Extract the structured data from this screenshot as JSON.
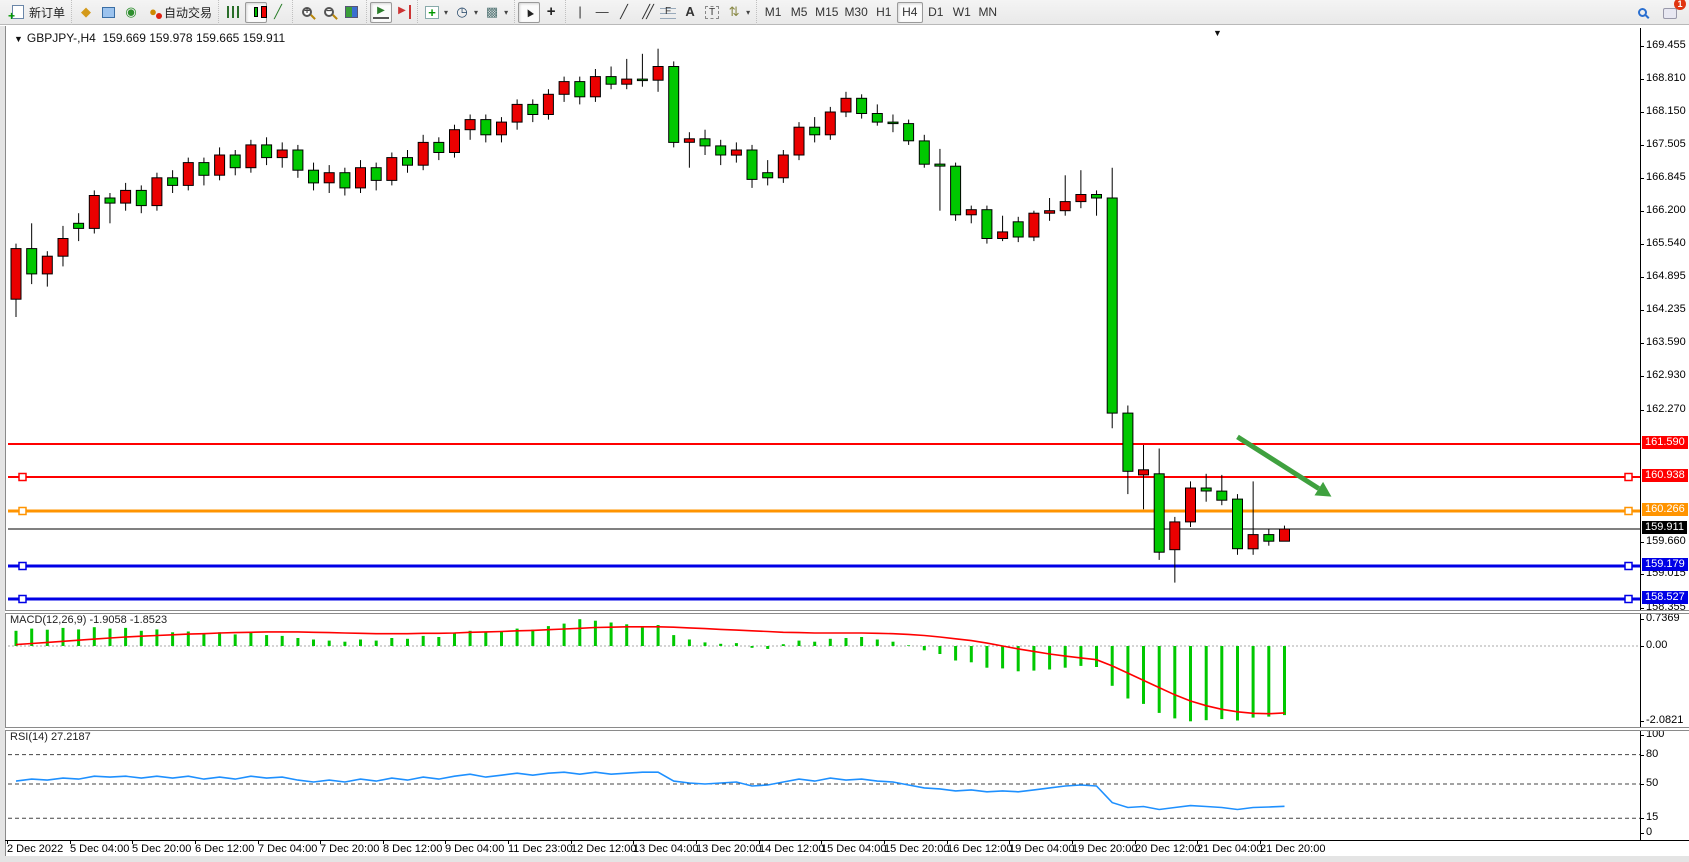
{
  "toolbar": {
    "groups": [
      {
        "items": [
          {
            "name": "new-order-button",
            "icon": "doc-plus",
            "label": "新订单"
          }
        ]
      },
      {
        "items": [
          {
            "name": "object-pointer-button",
            "icon": "gold-pointer"
          },
          {
            "name": "market-data-button",
            "icon": "monitor"
          },
          {
            "name": "news-feed-button",
            "icon": "signal"
          },
          {
            "name": "auto-trading-button",
            "icon": "globe-red",
            "label": "自动交易"
          }
        ]
      },
      {
        "items": [
          {
            "name": "bar-chart-button",
            "icon": "bars"
          },
          {
            "name": "candlestick-chart-button",
            "icon": "candles",
            "active": true
          },
          {
            "name": "line-chart-button",
            "icon": "linechart"
          }
        ]
      },
      {
        "items": [
          {
            "name": "zoom-in-button",
            "icon": "zoom-in"
          },
          {
            "name": "zoom-out-button",
            "icon": "zoom-out"
          },
          {
            "name": "tile-windows-button",
            "icon": "tiles"
          }
        ]
      },
      {
        "items": [
          {
            "name": "auto-scroll-button",
            "icon": "autoscroll",
            "active": true
          },
          {
            "name": "chart-shift-button",
            "icon": "shift"
          }
        ]
      },
      {
        "items": [
          {
            "name": "indicators-button",
            "icon": "add-indicator",
            "dropdown": true
          },
          {
            "name": "periods-button",
            "icon": "clock",
            "dropdown": true
          },
          {
            "name": "templates-button",
            "icon": "template",
            "dropdown": true
          }
        ]
      },
      {
        "items": [
          {
            "name": "cursor-button",
            "icon": "cursor",
            "active": true
          },
          {
            "name": "crosshair-button",
            "icon": "crosshair"
          }
        ]
      },
      {
        "items": [
          {
            "name": "vertical-line-button",
            "icon": "vline"
          },
          {
            "name": "horizontal-line-button",
            "icon": "hline"
          },
          {
            "name": "trendline-button",
            "icon": "trendline"
          },
          {
            "name": "equidistant-channel-button",
            "icon": "channel"
          },
          {
            "name": "fibonacci-button",
            "icon": "fibo"
          },
          {
            "name": "text-button",
            "icon": "textA"
          },
          {
            "name": "text-label-button",
            "icon": "labelT"
          },
          {
            "name": "arrows-button",
            "icon": "arrows",
            "dropdown": true
          }
        ]
      },
      {
        "items": [
          {
            "name": "timeframe-m1",
            "label": "M1"
          },
          {
            "name": "timeframe-m5",
            "label": "M5"
          },
          {
            "name": "timeframe-m15",
            "label": "M15"
          },
          {
            "name": "timeframe-m30",
            "label": "M30"
          },
          {
            "name": "timeframe-h1",
            "label": "H1"
          },
          {
            "name": "timeframe-h4",
            "label": "H4",
            "active": true
          },
          {
            "name": "timeframe-d1",
            "label": "D1"
          },
          {
            "name": "timeframe-w1",
            "label": "W1"
          },
          {
            "name": "timeframe-mn",
            "label": "MN"
          }
        ]
      }
    ],
    "right": {
      "search": {
        "name": "search-button"
      },
      "chat": {
        "name": "chat-button",
        "badge": "1"
      }
    }
  },
  "header": {
    "symbol_period": "GBPJPY-,H4",
    "ohlc_text": "159.669 159.978 159.665 159.911",
    "collapse_arrow": "▼",
    "shift_marker": "▼"
  },
  "macd_panel": {
    "label": "MACD(12,26,9) -1.9058 -1.8523"
  },
  "rsi_panel": {
    "label": "RSI(14) 27.2187"
  },
  "chart_data": {
    "type": "candlestick",
    "symbol": "GBPJPY-",
    "timeframe": "H4",
    "title": "GBPJPY-,H4  159.669 159.978 159.665 159.911",
    "current_bar": {
      "open": 159.669,
      "high": 159.978,
      "low": 159.665,
      "close": 159.911
    },
    "colors": {
      "bull": "#EA0000",
      "bear": "#00C800",
      "wick": "#000000",
      "note": "inverted CN scheme: red = up, green = down"
    },
    "y_axis": {
      "visible_range": [
        158.355,
        169.455
      ],
      "ticks": [
        "169.455",
        "168.810",
        "168.150",
        "167.505",
        "166.845",
        "166.200",
        "165.540",
        "164.895",
        "164.235",
        "163.590",
        "162.930",
        "162.270",
        "159.660",
        "159.015",
        "158.355"
      ]
    },
    "x_axis": {
      "labels": [
        "2 Dec 2022",
        "5 Dec 04:00",
        "5 Dec 20:00",
        "6 Dec 12:00",
        "7 Dec 04:00",
        "7 Dec 20:00",
        "8 Dec 12:00",
        "9 Dec 04:00",
        "11 Dec 23:00",
        "12 Dec 12:00",
        "13 Dec 04:00",
        "13 Dec 20:00",
        "14 Dec 12:00",
        "15 Dec 04:00",
        "15 Dec 20:00",
        "16 Dec 12:00",
        "19 Dec 04:00",
        "19 Dec 20:00",
        "20 Dec 12:00",
        "21 Dec 04:00",
        "21 Dec 20:00"
      ],
      "candles_per_label": 4
    },
    "horizontal_levels": [
      {
        "price": 161.59,
        "color": "#FF0000",
        "width": 2,
        "selected": false
      },
      {
        "price": 160.938,
        "color": "#FF0000",
        "width": 2,
        "selected": true
      },
      {
        "price": 160.266,
        "color": "#FF9400",
        "width": 3,
        "selected": true
      },
      {
        "price": 159.179,
        "color": "#0000E6",
        "width": 3,
        "selected": true
      },
      {
        "price": 158.527,
        "color": "#0000E6",
        "width": 3,
        "selected": true
      }
    ],
    "bid_line": {
      "price": 159.911,
      "color": "#000000",
      "label_bg": "#000000"
    },
    "arrow_annotation": {
      "color": "#3FA13F",
      "from": {
        "bar": 78,
        "price": 161.73
      },
      "to": {
        "bar": 84,
        "price": 160.55
      }
    },
    "candles": [
      [
        164.45,
        165.55,
        164.1,
        165.45
      ],
      [
        165.45,
        165.95,
        164.75,
        164.95
      ],
      [
        164.95,
        165.4,
        164.7,
        165.3
      ],
      [
        165.3,
        165.9,
        165.1,
        165.65
      ],
      [
        165.95,
        166.15,
        165.6,
        165.85
      ],
      [
        165.85,
        166.6,
        165.75,
        166.5
      ],
      [
        166.45,
        166.55,
        165.95,
        166.35
      ],
      [
        166.35,
        166.75,
        166.2,
        166.6
      ],
      [
        166.6,
        166.7,
        166.15,
        166.3
      ],
      [
        166.3,
        166.95,
        166.2,
        166.85
      ],
      [
        166.85,
        167.0,
        166.55,
        166.7
      ],
      [
        166.7,
        167.25,
        166.6,
        167.15
      ],
      [
        167.15,
        167.25,
        166.7,
        166.9
      ],
      [
        166.9,
        167.45,
        166.8,
        167.3
      ],
      [
        167.3,
        167.4,
        166.9,
        167.05
      ],
      [
        167.05,
        167.6,
        166.95,
        167.5
      ],
      [
        167.5,
        167.65,
        167.1,
        167.25
      ],
      [
        167.25,
        167.55,
        167.05,
        167.4
      ],
      [
        167.4,
        167.5,
        166.85,
        167.0
      ],
      [
        167.0,
        167.15,
        166.6,
        166.75
      ],
      [
        166.75,
        167.1,
        166.55,
        166.95
      ],
      [
        166.95,
        167.05,
        166.5,
        166.65
      ],
      [
        166.65,
        167.2,
        166.55,
        167.05
      ],
      [
        167.05,
        167.15,
        166.6,
        166.8
      ],
      [
        166.8,
        167.35,
        166.7,
        167.25
      ],
      [
        167.25,
        167.4,
        166.95,
        167.1
      ],
      [
        167.1,
        167.7,
        167.0,
        167.55
      ],
      [
        167.55,
        167.65,
        167.2,
        167.35
      ],
      [
        167.35,
        167.9,
        167.25,
        167.8
      ],
      [
        167.8,
        168.1,
        167.6,
        168.0
      ],
      [
        168.0,
        168.1,
        167.55,
        167.7
      ],
      [
        167.7,
        168.05,
        167.55,
        167.95
      ],
      [
        167.95,
        168.4,
        167.8,
        168.3
      ],
      [
        168.3,
        168.4,
        167.95,
        168.1
      ],
      [
        168.1,
        168.6,
        168.0,
        168.5
      ],
      [
        168.5,
        168.85,
        168.35,
        168.75
      ],
      [
        168.75,
        168.85,
        168.3,
        168.45
      ],
      [
        168.45,
        169.0,
        168.35,
        168.85
      ],
      [
        168.85,
        169.05,
        168.6,
        168.7
      ],
      [
        168.7,
        169.2,
        168.6,
        168.8
      ],
      [
        168.8,
        169.3,
        168.65,
        168.78
      ],
      [
        168.78,
        169.4,
        168.55,
        169.05
      ],
      [
        169.05,
        169.15,
        167.45,
        167.55
      ],
      [
        167.55,
        167.75,
        167.05,
        167.62
      ],
      [
        167.62,
        167.8,
        167.3,
        167.48
      ],
      [
        167.48,
        167.6,
        167.1,
        167.3
      ],
      [
        167.3,
        167.55,
        167.15,
        167.4
      ],
      [
        167.4,
        167.5,
        166.65,
        166.82
      ],
      [
        166.95,
        167.2,
        166.7,
        166.85
      ],
      [
        166.85,
        167.4,
        166.75,
        167.3
      ],
      [
        167.3,
        167.95,
        167.2,
        167.85
      ],
      [
        167.85,
        168.05,
        167.55,
        167.7
      ],
      [
        167.7,
        168.25,
        167.6,
        168.15
      ],
      [
        168.15,
        168.55,
        168.05,
        168.42
      ],
      [
        168.42,
        168.5,
        168.02,
        168.12
      ],
      [
        168.12,
        168.3,
        167.88,
        167.95
      ],
      [
        167.95,
        168.1,
        167.75,
        167.92
      ],
      [
        167.92,
        168.0,
        167.5,
        167.58
      ],
      [
        167.58,
        167.7,
        167.05,
        167.12
      ],
      [
        167.12,
        167.42,
        166.2,
        167.08
      ],
      [
        167.08,
        167.15,
        166.0,
        166.12
      ],
      [
        166.12,
        166.3,
        165.95,
        166.22
      ],
      [
        166.22,
        166.3,
        165.55,
        165.65
      ],
      [
        165.65,
        166.1,
        165.6,
        165.78
      ],
      [
        165.98,
        166.08,
        165.58,
        165.68
      ],
      [
        165.68,
        166.2,
        165.6,
        166.15
      ],
      [
        166.15,
        166.45,
        166.0,
        166.2
      ],
      [
        166.2,
        166.9,
        166.1,
        166.38
      ],
      [
        166.38,
        167.0,
        166.25,
        166.52
      ],
      [
        166.52,
        166.6,
        166.1,
        166.45
      ],
      [
        166.45,
        167.05,
        161.9,
        162.2
      ],
      [
        162.2,
        162.35,
        160.6,
        161.05
      ],
      [
        160.98,
        161.57,
        160.3,
        161.08
      ],
      [
        161.0,
        161.5,
        159.3,
        159.45
      ],
      [
        159.5,
        160.15,
        158.85,
        160.05
      ],
      [
        160.05,
        160.85,
        159.95,
        160.72
      ],
      [
        160.72,
        161.0,
        160.45,
        160.66
      ],
      [
        160.66,
        160.98,
        160.38,
        160.48
      ],
      [
        160.5,
        160.6,
        159.4,
        159.52
      ],
      [
        159.52,
        160.85,
        159.4,
        159.8
      ],
      [
        159.8,
        159.9,
        159.58,
        159.67
      ],
      [
        159.669,
        159.978,
        159.665,
        159.911
      ]
    ],
    "macd": {
      "label": "MACD(12,26,9)",
      "main_value": -1.9058,
      "signal_value": -1.8523,
      "axis_ticks": [
        "0.7369",
        "0.00",
        "-2.0821"
      ],
      "histogram_color": "#00C800",
      "signal_color": "#FF0000",
      "histogram": [
        0.42,
        0.48,
        0.45,
        0.5,
        0.46,
        0.52,
        0.48,
        0.5,
        0.42,
        0.46,
        0.38,
        0.4,
        0.34,
        0.38,
        0.32,
        0.36,
        0.3,
        0.28,
        0.22,
        0.18,
        0.15,
        0.12,
        0.18,
        0.15,
        0.22,
        0.2,
        0.28,
        0.25,
        0.35,
        0.42,
        0.38,
        0.4,
        0.48,
        0.45,
        0.55,
        0.62,
        0.74,
        0.7,
        0.65,
        0.6,
        0.55,
        0.58,
        0.3,
        0.18,
        0.1,
        0.06,
        0.08,
        -0.05,
        -0.08,
        0.05,
        0.15,
        0.12,
        0.2,
        0.22,
        0.25,
        0.18,
        0.12,
        0.02,
        -0.12,
        -0.22,
        -0.4,
        -0.45,
        -0.6,
        -0.62,
        -0.7,
        -0.68,
        -0.65,
        -0.6,
        -0.55,
        -0.58,
        -1.1,
        -1.45,
        -1.6,
        -1.85,
        -2.0,
        -2.08,
        -2.05,
        -2.02,
        -2.06,
        -1.98,
        -1.95,
        -1.91
      ],
      "signal_series": [
        0.04,
        0.07,
        0.1,
        0.13,
        0.16,
        0.19,
        0.22,
        0.25,
        0.27,
        0.29,
        0.31,
        0.33,
        0.34,
        0.36,
        0.37,
        0.38,
        0.39,
        0.39,
        0.39,
        0.38,
        0.37,
        0.36,
        0.35,
        0.34,
        0.34,
        0.34,
        0.35,
        0.35,
        0.36,
        0.38,
        0.39,
        0.4,
        0.42,
        0.43,
        0.45,
        0.47,
        0.49,
        0.51,
        0.52,
        0.53,
        0.53,
        0.53,
        0.52,
        0.5,
        0.48,
        0.46,
        0.44,
        0.42,
        0.4,
        0.38,
        0.37,
        0.36,
        0.36,
        0.36,
        0.36,
        0.35,
        0.34,
        0.32,
        0.29,
        0.25,
        0.2,
        0.15,
        0.08,
        0.0,
        -0.08,
        -0.15,
        -0.22,
        -0.28,
        -0.33,
        -0.38,
        -0.55,
        -0.75,
        -0.95,
        -1.15,
        -1.35,
        -1.52,
        -1.65,
        -1.75,
        -1.82,
        -1.86,
        -1.87,
        -1.85
      ]
    },
    "rsi": {
      "label": "RSI(14)",
      "value": 27.2187,
      "line_color": "#1E90FF",
      "axis_ticks": [
        "100",
        "80",
        "50",
        "15",
        "0"
      ],
      "dashed_levels": [
        80,
        50,
        15
      ],
      "series": [
        53,
        55,
        54,
        56,
        55,
        58,
        57,
        58,
        56,
        58,
        56,
        58,
        55,
        57,
        55,
        58,
        56,
        57,
        54,
        52,
        54,
        52,
        55,
        53,
        56,
        54,
        57,
        55,
        58,
        60,
        57,
        59,
        61,
        59,
        61,
        62,
        60,
        62,
        60,
        61,
        62,
        62,
        53,
        51,
        50,
        51,
        52,
        48,
        49,
        52,
        55,
        53,
        56,
        54,
        55,
        53,
        52,
        49,
        46,
        45,
        43,
        44,
        42,
        43,
        42,
        44,
        46,
        48,
        49,
        48,
        31,
        26,
        27,
        24,
        26,
        28,
        27,
        26,
        24,
        26,
        26.5,
        27.22
      ]
    }
  }
}
